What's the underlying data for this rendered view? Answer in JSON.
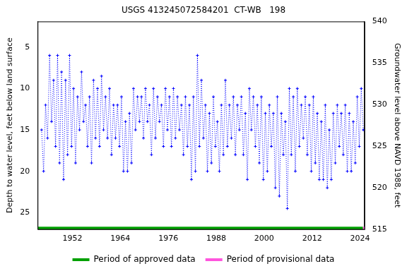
{
  "chart_data": {
    "type": "line",
    "title": "USGS 413245072584201  CT-WB   198",
    "x_label": null,
    "y_label": "Depth to water level, feet below land surface",
    "y2_label": "Groundwater level above NAVD 1988, feet",
    "xlim": [
      1943.3,
      2025.1
    ],
    "xticks": [
      1952,
      1964,
      1976,
      1988,
      2000,
      2012,
      2024
    ],
    "ylim": [
      1.9,
      27
    ],
    "yticks": [
      5,
      10,
      15,
      20,
      25
    ],
    "y2lim": [
      515,
      540
    ],
    "y2ticks": [
      515,
      520,
      525,
      530,
      535,
      540
    ],
    "grid": false,
    "legend": "bottom",
    "series": [
      {
        "color": "#0000ff",
        "marker": "cross",
        "line_style": "dotted",
        "x": [
          1944.3,
          1944.8,
          1945.3,
          1945.8,
          1946.3,
          1946.8,
          1947.3,
          1947.8,
          1948.3,
          1948.8,
          1949.3,
          1949.8,
          1950.3,
          1950.8,
          1951.3,
          1951.8,
          1952.3,
          1952.8,
          1953.3,
          1953.8,
          1954.3,
          1954.8,
          1955.3,
          1955.8,
          1956.3,
          1956.8,
          1957.3,
          1957.8,
          1958.3,
          1958.8,
          1959.3,
          1959.8,
          1960.3,
          1960.8,
          1961.3,
          1961.8,
          1962.3,
          1962.8,
          1963.3,
          1963.8,
          1964.3,
          1964.8,
          1965.3,
          1965.8,
          1966.3,
          1966.8,
          1967.3,
          1967.8,
          1968.3,
          1968.8,
          1969.3,
          1969.8,
          1970.3,
          1970.8,
          1971.3,
          1971.8,
          1972.3,
          1972.8,
          1973.3,
          1973.8,
          1974.3,
          1974.8,
          1975.3,
          1975.8,
          1976.3,
          1976.8,
          1977.3,
          1977.8,
          1978.3,
          1978.8,
          1979.3,
          1979.8,
          1980.3,
          1980.8,
          1981.3,
          1981.8,
          1982.3,
          1982.8,
          1983.3,
          1983.8,
          1984.3,
          1984.8,
          1985.3,
          1985.8,
          1986.3,
          1986.8,
          1987.3,
          1987.8,
          1988.3,
          1988.8,
          1989.3,
          1989.8,
          1990.3,
          1990.8,
          1991.3,
          1991.8,
          1992.3,
          1992.8,
          1993.3,
          1993.8,
          1994.3,
          1994.8,
          1995.3,
          1995.8,
          1996.3,
          1996.8,
          1997.3,
          1997.8,
          1998.3,
          1998.8,
          1999.3,
          1999.8,
          2000.3,
          2000.8,
          2001.3,
          2001.8,
          2002.3,
          2002.8,
          2003.3,
          2003.8,
          2004.3,
          2004.8,
          2005.3,
          2005.8,
          2006.3,
          2006.8,
          2007.3,
          2007.8,
          2008.3,
          2008.8,
          2009.3,
          2009.8,
          2010.3,
          2010.8,
          2011.3,
          2011.8,
          2012.3,
          2012.8,
          2013.3,
          2013.8,
          2014.3,
          2014.8,
          2015.3,
          2015.8,
          2016.3,
          2016.8,
          2017.3,
          2017.8,
          2018.3,
          2018.8,
          2019.3,
          2019.8,
          2020.3,
          2020.8,
          2021.3,
          2021.8,
          2022.3,
          2022.8,
          2023.3,
          2023.8,
          2024.3,
          2024.8
        ],
        "values": [
          15,
          20,
          12,
          16,
          6,
          14,
          9,
          17,
          6,
          19,
          8,
          21,
          9,
          18,
          6,
          17,
          10,
          19,
          11,
          15,
          8,
          14,
          12,
          17,
          11,
          19,
          9,
          16,
          10,
          17,
          8.5,
          15,
          11,
          16,
          10,
          18,
          12,
          16,
          12,
          17,
          11,
          20,
          14,
          20,
          13,
          19,
          10,
          15,
          11,
          14,
          11,
          16,
          10,
          14,
          12,
          18,
          10,
          16,
          11,
          14,
          12,
          17,
          10,
          15,
          11,
          17,
          10,
          16,
          11,
          15,
          12,
          18,
          11,
          17,
          12,
          21,
          11,
          20,
          6,
          17,
          9,
          16,
          12,
          20,
          13,
          19,
          11,
          17,
          14,
          20,
          12,
          18,
          9,
          17,
          12,
          16,
          11,
          18,
          12,
          15,
          11,
          18,
          13,
          21,
          10,
          15,
          11,
          17,
          12,
          19,
          11,
          21,
          13,
          20,
          12,
          17,
          13,
          22,
          11,
          23,
          13,
          18,
          14,
          24.5,
          10,
          18,
          11,
          20,
          10,
          17,
          12,
          16,
          11,
          18,
          12,
          20,
          11,
          19,
          13,
          21,
          14,
          21,
          12,
          22,
          15,
          21,
          13,
          19,
          12,
          17,
          13,
          18,
          12,
          20,
          13,
          20,
          14,
          19,
          11,
          17,
          10,
          15
        ]
      },
      {
        "name": "Period of approved data",
        "color": "#00a000",
        "line_style": "solid",
        "x": [
          1943.3,
          2024.7
        ],
        "values": [
          26.9,
          26.9
        ]
      },
      {
        "name": "Period of provisional data",
        "color": "#ff55dd",
        "line_style": "solid",
        "x": [
          2024.7,
          2025.1
        ],
        "values": [
          26.9,
          26.9
        ]
      }
    ]
  }
}
